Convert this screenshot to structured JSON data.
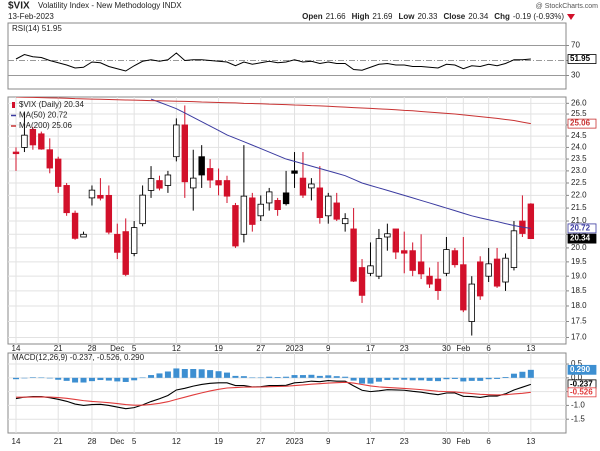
{
  "header": {
    "symbol": "$VIX",
    "name": "Volatility Index - New Methodology INDX",
    "date": "13-Feb-2023",
    "copyright": "@ StockCharts.com",
    "quote": [
      {
        "label": "Open",
        "value": "21.66"
      },
      {
        "label": "High",
        "value": "21.69"
      },
      {
        "label": "Low",
        "value": "20.33"
      },
      {
        "label": "Close",
        "value": "20.34"
      },
      {
        "label": "Chg",
        "value": "-0.19 (-0.93%)"
      }
    ]
  },
  "chart_data": [
    {
      "type": "line",
      "ylim": [
        12,
        100
      ],
      "yticks": [
        30,
        50,
        70
      ],
      "series": [
        {
          "name": "RSI(14) 51.95",
          "color": "#000000",
          "last_label": "51.95",
          "values": [
            52,
            58,
            55,
            54,
            50,
            47,
            44,
            40,
            41,
            48,
            47,
            42,
            39,
            36,
            43,
            49,
            51,
            49,
            51,
            60,
            50,
            51,
            51,
            50,
            49,
            48,
            43,
            48,
            45,
            47,
            49,
            47,
            48,
            51,
            48,
            49,
            46,
            48,
            46,
            46,
            38,
            37,
            41,
            45,
            46,
            44,
            44,
            42,
            42,
            41,
            40,
            45,
            44,
            39,
            43,
            42,
            45,
            43,
            46,
            51,
            51,
            51.95
          ]
        }
      ]
    },
    {
      "type": "candlestick",
      "log_scale": true,
      "grid": true,
      "ylim": [
        16.8,
        26.3
      ],
      "yticks": [
        {
          "value": 17,
          "label": "17.0"
        },
        17.5,
        {
          "value": 18,
          "label": "18.0"
        },
        18.5,
        {
          "value": 19,
          "label": "19.0"
        },
        19.5,
        {
          "value": 20,
          "label": "20.0"
        },
        20.5,
        {
          "value": 21,
          "label": "21.0"
        },
        21.5,
        {
          "value": 22,
          "label": "22.0"
        },
        22.5,
        {
          "value": 23,
          "label": "23.0"
        },
        23.5,
        {
          "value": 24,
          "label": "24.0"
        },
        24.5,
        {
          "value": 25,
          "label": "25.0"
        },
        25.5,
        {
          "value": 26,
          "label": "26.0"
        }
      ],
      "categories": [
        "14",
        null,
        null,
        null,
        null,
        "21",
        null,
        null,
        null,
        "28",
        null,
        null,
        "Dec",
        null,
        "5",
        null,
        null,
        null,
        null,
        "12",
        null,
        null,
        null,
        null,
        "19",
        null,
        null,
        null,
        null,
        "27",
        null,
        null,
        null,
        "2023",
        null,
        null,
        null,
        "9",
        null,
        null,
        null,
        null,
        "17",
        null,
        null,
        null,
        "23",
        null,
        null,
        null,
        null,
        "30",
        null,
        "Feb",
        null,
        null,
        "6",
        null,
        null,
        null,
        null,
        "13"
      ],
      "up_color": "#000000",
      "down_color": "#d2102a",
      "series": [
        {
          "name": "$VIX (Daily) 20.34",
          "type": "candlestick",
          "last_label": "20.34",
          "open": [
            23.8,
            24.0,
            24.8,
            24.6,
            23.9,
            23.5,
            22.4,
            21.3,
            20.4,
            21.9,
            22.0,
            22.0,
            20.5,
            20.6,
            19.8,
            20.9,
            22.2,
            22.6,
            22.4,
            23.6,
            25.0,
            22.3,
            23.6,
            23.1,
            22.6,
            22.6,
            21.6,
            20.5,
            21.9,
            21.2,
            21.7,
            21.8,
            22.1,
            23.0,
            22.7,
            22.3,
            22.3,
            21.2,
            21.7,
            20.9,
            20.7,
            19.3,
            19.1,
            19.0,
            20.4,
            20.7,
            19.9,
            19.9,
            19.5,
            19.0,
            18.9,
            19.1,
            19.9,
            19.4,
            17.5,
            19.5,
            19.0,
            19.6,
            18.8,
            19.3,
            21.0,
            21.66
          ],
          "high": [
            24.0,
            25.6,
            24.9,
            24.7,
            24.4,
            23.6,
            22.5,
            21.4,
            20.6,
            22.4,
            22.7,
            22.4,
            20.9,
            21.1,
            21.0,
            22.4,
            23.2,
            22.8,
            23.0,
            25.3,
            25.9,
            23.9,
            24.1,
            23.5,
            23.1,
            22.8,
            21.7,
            24.1,
            22.1,
            22.0,
            22.3,
            21.9,
            23.0,
            23.8,
            23.8,
            22.7,
            23.2,
            22.1,
            22.1,
            21.3,
            21.5,
            19.6,
            20.2,
            20.7,
            20.9,
            20.7,
            20.6,
            20.2,
            20.5,
            19.3,
            19.5,
            20.4,
            20.0,
            20.4,
            19.0,
            19.7,
            20.0,
            20.0,
            19.8,
            21.0,
            22.0,
            21.69
          ],
          "low": [
            23.0,
            23.8,
            23.9,
            23.9,
            22.9,
            22.1,
            21.2,
            20.3,
            20.4,
            21.6,
            21.8,
            20.5,
            19.6,
            19.0,
            19.7,
            20.8,
            21.9,
            22.2,
            22.1,
            23.4,
            21.9,
            21.4,
            22.3,
            22.3,
            22.0,
            21.7,
            20.0,
            20.2,
            20.6,
            21.0,
            21.4,
            21.2,
            21.6,
            22.3,
            21.9,
            21.8,
            20.9,
            20.9,
            21.0,
            20.6,
            18.8,
            18.1,
            19.0,
            18.9,
            19.9,
            19.6,
            19.1,
            19.0,
            18.9,
            18.6,
            18.2,
            19.0,
            19.3,
            17.8,
            17.06,
            18.2,
            18.8,
            18.6,
            18.5,
            19.2,
            20.4,
            20.33
          ],
          "close": [
            23.73,
            24.54,
            24.11,
            23.93,
            23.12,
            22.36,
            21.32,
            20.35,
            20.5,
            22.21,
            21.89,
            20.58,
            19.84,
            19.06,
            20.75,
            22.01,
            22.68,
            22.29,
            22.83,
            25.0,
            22.55,
            22.7,
            22.83,
            22.62,
            22.42,
            21.97,
            20.07,
            21.97,
            20.87,
            21.65,
            22.14,
            21.44,
            21.67,
            22.9,
            22.01,
            22.46,
            21.13,
            21.97,
            21.07,
            21.09,
            18.83,
            18.35,
            19.36,
            20.34,
            20.52,
            19.85,
            19.81,
            19.2,
            19.08,
            18.73,
            18.51,
            19.94,
            19.4,
            17.87,
            18.73,
            18.33,
            19.43,
            18.66,
            19.63,
            20.63,
            20.53,
            20.34
          ]
        },
        {
          "name": "MA(50) 20.72",
          "type": "line",
          "color": "#3b3ba0",
          "last_label": "20.72",
          "values": [
            null,
            null,
            null,
            null,
            null,
            null,
            null,
            null,
            null,
            null,
            null,
            null,
            null,
            null,
            null,
            null,
            26.2,
            26.05,
            25.9,
            25.75,
            25.55,
            25.35,
            25.15,
            24.95,
            24.75,
            24.55,
            24.4,
            24.25,
            24.1,
            23.95,
            23.8,
            23.65,
            23.5,
            23.4,
            23.3,
            23.2,
            23.1,
            23.0,
            22.9,
            22.8,
            22.65,
            22.5,
            22.4,
            22.3,
            22.2,
            22.1,
            22.0,
            21.9,
            21.8,
            21.7,
            21.6,
            21.5,
            21.4,
            21.3,
            21.2,
            21.12,
            21.05,
            20.98,
            20.9,
            20.83,
            20.77,
            20.72
          ]
        },
        {
          "name": "MA(200) 25.06",
          "type": "line",
          "color": "#c83232",
          "last_label": "25.06",
          "values": [
            26.3,
            26.29,
            26.28,
            26.27,
            26.26,
            26.25,
            26.24,
            26.22,
            26.21,
            26.2,
            26.19,
            26.18,
            26.17,
            26.16,
            26.15,
            26.14,
            26.13,
            26.12,
            26.11,
            26.1,
            26.09,
            26.08,
            26.06,
            26.05,
            26.04,
            26.03,
            26.02,
            26.0,
            25.99,
            25.98,
            25.96,
            25.95,
            25.94,
            25.92,
            25.91,
            25.89,
            25.88,
            25.86,
            25.84,
            25.82,
            25.8,
            25.78,
            25.76,
            25.74,
            25.72,
            25.7,
            25.67,
            25.65,
            25.62,
            25.59,
            25.56,
            25.53,
            25.5,
            25.46,
            25.42,
            25.38,
            25.34,
            25.3,
            25.25,
            25.2,
            25.13,
            25.06
          ]
        }
      ]
    },
    {
      "type": "macd",
      "label": "MACD(12,26,9) -0.237, -0.526, 0.290",
      "grid": true,
      "ylim": [
        -2.0,
        0.9
      ],
      "yticks": [
        -1.5,
        {
          "value": -1,
          "label": "-1.0"
        },
        -0.5,
        {
          "value": 0,
          "label": "0.0"
        },
        0.5
      ],
      "categories": [
        "14",
        null,
        null,
        null,
        null,
        "21",
        null,
        null,
        null,
        "28",
        null,
        null,
        "Dec",
        null,
        "5",
        null,
        null,
        null,
        null,
        "12",
        null,
        null,
        null,
        null,
        "19",
        null,
        null,
        null,
        null,
        "27",
        null,
        null,
        null,
        "2023",
        null,
        null,
        null,
        "9",
        null,
        null,
        null,
        null,
        "17",
        null,
        null,
        null,
        "23",
        null,
        null,
        null,
        null,
        "30",
        null,
        "Feb",
        null,
        null,
        "6",
        null,
        null,
        null,
        null,
        "13"
      ],
      "series": [
        {
          "type": "histogram",
          "color": "#3d8fd1",
          "last_label": "0.290",
          "values": [
            -0.05,
            0.0,
            0.02,
            0.01,
            -0.02,
            -0.07,
            -0.11,
            -0.17,
            -0.17,
            -0.12,
            -0.08,
            -0.1,
            -0.13,
            -0.15,
            -0.09,
            0.01,
            0.1,
            0.16,
            0.23,
            0.34,
            0.32,
            0.32,
            0.31,
            0.28,
            0.24,
            0.19,
            0.07,
            0.06,
            0.01,
            0.01,
            0.04,
            0.03,
            0.04,
            0.1,
            0.1,
            0.11,
            0.07,
            0.09,
            0.06,
            0.04,
            -0.1,
            -0.21,
            -0.21,
            -0.14,
            -0.08,
            -0.07,
            -0.07,
            -0.09,
            -0.09,
            -0.11,
            -0.12,
            -0.05,
            -0.04,
            -0.13,
            -0.11,
            -0.11,
            -0.05,
            -0.04,
            0.03,
            0.15,
            0.22,
            0.29
          ]
        },
        {
          "type": "line",
          "color": "#000000",
          "last_label": "-0.237",
          "values": [
            -0.75,
            -0.7,
            -0.68,
            -0.68,
            -0.72,
            -0.78,
            -0.85,
            -0.95,
            -1.0,
            -0.97,
            -0.96,
            -1.0,
            -1.06,
            -1.12,
            -1.08,
            -0.98,
            -0.86,
            -0.76,
            -0.64,
            -0.44,
            -0.38,
            -0.3,
            -0.24,
            -0.2,
            -0.18,
            -0.18,
            -0.28,
            -0.28,
            -0.33,
            -0.32,
            -0.28,
            -0.28,
            -0.27,
            -0.18,
            -0.16,
            -0.12,
            -0.14,
            -0.1,
            -0.12,
            -0.12,
            -0.29,
            -0.45,
            -0.5,
            -0.47,
            -0.43,
            -0.44,
            -0.45,
            -0.49,
            -0.52,
            -0.57,
            -0.61,
            -0.55,
            -0.55,
            -0.67,
            -0.68,
            -0.71,
            -0.66,
            -0.66,
            -0.58,
            -0.44,
            -0.34,
            -0.237
          ]
        },
        {
          "type": "line",
          "color": "#e03c3c",
          "last_label": "-0.526",
          "values": [
            -0.7,
            -0.7,
            -0.696,
            -0.693,
            -0.698,
            -0.715,
            -0.742,
            -0.783,
            -0.827,
            -0.855,
            -0.876,
            -0.901,
            -0.933,
            -0.97,
            -0.992,
            -0.99,
            -0.964,
            -0.923,
            -0.866,
            -0.781,
            -0.701,
            -0.621,
            -0.545,
            -0.476,
            -0.417,
            -0.369,
            -0.352,
            -0.337,
            -0.336,
            -0.333,
            -0.322,
            -0.314,
            -0.305,
            -0.28,
            -0.256,
            -0.229,
            -0.211,
            -0.189,
            -0.175,
            -0.164,
            -0.189,
            -0.241,
            -0.293,
            -0.328,
            -0.348,
            -0.367,
            -0.383,
            -0.405,
            -0.428,
            -0.456,
            -0.487,
            -0.5,
            -0.51,
            -0.542,
            -0.569,
            -0.597,
            -0.61,
            -0.62,
            -0.612,
            -0.585,
            -0.56,
            -0.526
          ]
        }
      ]
    }
  ]
}
